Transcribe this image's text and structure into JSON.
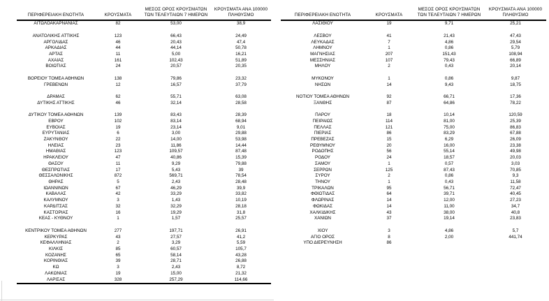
{
  "page": {
    "background": "#ffffff",
    "text_color": "#000000"
  },
  "table_headers": {
    "region": "ΠΕΡΙΦΕΡΕΙΑΚΗ ΕΝΟΤΗΤΑ",
    "cases": "ΚΡΟΥΣΜΑΤΑ",
    "avg7": "ΜΕΣΟΣ ΟΡΟΣ ΚΡΟΥΣΜΑΤΩΝ\nΤΩΝ ΤΕΛΕΥΤΑΙΩΝ 7 ΗΜΕΡΩΝ",
    "per100k": "ΚΡΟΥΣΜΑΤΑ ΑΝΑ 100000\nΠΛΗΘΥΣΜΟ"
  },
  "left_table": {
    "rows": [
      [
        "ΑΙΤΩΛΟΑΚΑΡΝΑΝΙΑΣ",
        "82",
        "53,00",
        "38,9"
      ],
      null,
      [
        "ΑΝΑΤΟΛΙΚΗΣ ΑΤΤΙΚΗΣ",
        "123",
        "66,43",
        "24,49"
      ],
      [
        "ΑΡΓΟΛΙΔΑΣ",
        "46",
        "20,43",
        "47,4"
      ],
      [
        "ΑΡΚΑΔΙΑΣ",
        "44",
        "44,14",
        "50,78"
      ],
      [
        "ΑΡΤΑΣ",
        "11",
        "5,00",
        "16,21"
      ],
      [
        "ΑΧΑΪΑΣ",
        "161",
        "102,43",
        "51,89"
      ],
      [
        "ΒΟΙΩΤΙΑΣ",
        "24",
        "20,57",
        "20,35"
      ],
      null,
      [
        "ΒΟΡΕΙΟΥ ΤΟΜΕΑ ΑΘΗΝΩΝ",
        "138",
        "79,86",
        "23,32"
      ],
      [
        "ΓΡΕΒΕΝΩΝ",
        "12",
        "16,57",
        "37,79"
      ],
      null,
      [
        "ΔΡΑΜΑΣ",
        "62",
        "55,71",
        "63,08"
      ],
      [
        "ΔΥΤΙΚΗΣ ΑΤΤΙΚΗΣ",
        "46",
        "32,14",
        "28,58"
      ],
      null,
      [
        "ΔΥΤΙΚΟΥ ΤΟΜΕΑ ΑΘΗΝΩΝ",
        "139",
        "83,43",
        "28,39"
      ],
      [
        "ΕΒΡΟΥ",
        "102",
        "83,14",
        "68,94"
      ],
      [
        "ΕΥΒΟΙΑΣ",
        "19",
        "23,14",
        "9,01"
      ],
      [
        "ΕΥΡΥΤΑΝΙΑΣ",
        "6",
        "3,00",
        "29,88"
      ],
      [
        "ΖΑΚΥΝΘΟΥ",
        "22",
        "14,00",
        "53,98"
      ],
      [
        "ΗΛΕΙΑΣ",
        "23",
        "11,86",
        "14,44"
      ],
      [
        "ΗΜΑΘΙΑΣ",
        "123",
        "109,57",
        "87,48"
      ],
      [
        "ΗΡΑΚΛΕΙΟΥ",
        "47",
        "40,86",
        "15,39"
      ],
      [
        "ΘΑΣΟΥ",
        "11",
        "9,29",
        "79,88"
      ],
      [
        "ΘΕΣΠΡΩΤΙΑΣ",
        "17",
        "5,43",
        "39"
      ],
      [
        "ΘΕΣΣΑΛΟΝΙΚΗΣ",
        "872",
        "569,71",
        "78,54"
      ],
      [
        "ΘΗΡΑΣ",
        "5",
        "2,43",
        "28,48"
      ],
      [
        "ΙΩΑΝΝΙΝΩΝ",
        "67",
        "46,29",
        "39,9"
      ],
      [
        "ΚΑΒΑΛΑΣ",
        "42",
        "33,29",
        "33,82"
      ],
      [
        "ΚΑΛΥΜΝΟΥ",
        "3",
        "1,43",
        "10,19"
      ],
      [
        "ΚΑΡΔΙΤΣΑΣ",
        "32",
        "32,29",
        "28,18"
      ],
      [
        "ΚΑΣΤΟΡΙΑΣ",
        "16",
        "19,29",
        "31,8"
      ],
      [
        "ΚΕΑΣ - ΚΥΘΝΟΥ",
        "1",
        "1,57",
        "25,57"
      ],
      null,
      [
        "ΚΕΝΤΡΙΚΟΥ ΤΟΜΕΑ ΑΘΗΝΩΝ",
        "277",
        "197,71",
        "26,91"
      ],
      [
        "ΚΕΡΚΥΡΑΣ",
        "43",
        "27,57",
        "41,2"
      ],
      [
        "ΚΕΦΑΛΛΗΝΙΑΣ",
        "2",
        "3,29",
        "5,59"
      ],
      [
        "ΚΙΛΚΙΣ",
        "85",
        "60,57",
        "105,7"
      ],
      [
        "ΚΟΖΑΝΗΣ",
        "65",
        "58,14",
        "43,28"
      ],
      [
        "ΚΟΡΙΝΘΙΑΣ",
        "39",
        "28,71",
        "26,88"
      ],
      [
        "ΚΩ",
        "3",
        "2,43",
        "8,72"
      ],
      [
        "ΛΑΚΩΝΙΑΣ",
        "19",
        "15,00",
        "21,32"
      ],
      [
        "ΛΑΡΙΣΑΣ",
        "328",
        "257,29",
        "114,66"
      ]
    ]
  },
  "right_table": {
    "rows": [
      [
        "ΛΑΣΙΘΙΟΥ",
        "19",
        "9,71",
        "25,21"
      ],
      null,
      [
        "ΛΕΣΒΟΥ",
        "41",
        "21,43",
        "47,43"
      ],
      [
        "ΛΕΥΚΑΔΑΣ",
        "7",
        "4,86",
        "29,54"
      ],
      [
        "ΛΗΜΝΟΥ",
        "1",
        "0,86",
        "5,79"
      ],
      [
        "ΜΑΓΝΗΣΙΑΣ",
        "207",
        "151,43",
        "108,94"
      ],
      [
        "ΜΕΣΣΗΝΙΑΣ",
        "107",
        "79,43",
        "66,89"
      ],
      [
        "ΜΗΛΟΥ",
        "2",
        "0,43",
        "20,14"
      ],
      null,
      [
        "ΜΥΚΟΝΟΥ",
        "1",
        "0,86",
        "9,87"
      ],
      [
        "ΝΗΣΩΝ",
        "14",
        "9,43",
        "18,75"
      ],
      null,
      [
        "ΝΟΤΙΟΥ ΤΟΜΕΑ ΑΘΗΝΩΝ",
        "92",
        "66,71",
        "17,36"
      ],
      [
        "ΞΑΝΘΗΣ",
        "87",
        "64,86",
        "78,22"
      ],
      null,
      [
        "ΠΑΡΟΥ",
        "18",
        "10,14",
        "120,59"
      ],
      [
        "ΠΕΙΡΑΙΩΣ",
        "114",
        "81,00",
        "25,39"
      ],
      [
        "ΠΕΛΛΑΣ",
        "121",
        "75,00",
        "86,83"
      ],
      [
        "ΠΙΕΡΙΑΣ",
        "86",
        "83,29",
        "67,88"
      ],
      [
        "ΠΡΕΒΕΖΑΣ",
        "15",
        "6,29",
        "26,09"
      ],
      [
        "ΡΕΘΥΜΝΟΥ",
        "20",
        "16,00",
        "23,38"
      ],
      [
        "ΡΟΔΟΠΗΣ",
        "56",
        "55,14",
        "49,98"
      ],
      [
        "ΡΟΔΟΥ",
        "24",
        "18,57",
        "20,03"
      ],
      [
        "ΣΑΜΟΥ",
        "1",
        "0,57",
        "3,03"
      ],
      [
        "ΣΕΡΡΩΝ",
        "125",
        "87,43",
        "70,85"
      ],
      [
        "ΣΥΡΟΥ",
        "2",
        "0,86",
        "9,3"
      ],
      [
        "ΤΗΝΟΥ",
        "1",
        "0,43",
        "11,58"
      ],
      [
        "ΤΡΙΚΑΛΩΝ",
        "95",
        "56,71",
        "72,47"
      ],
      [
        "ΦΘΙΩΤΙΔΑΣ",
        "64",
        "39,71",
        "40,45"
      ],
      [
        "ΦΛΩΡΙΝΑΣ",
        "14",
        "12,00",
        "27,23"
      ],
      [
        "ΦΩΚΙΔΑΣ",
        "14",
        "11,00",
        "34,7"
      ],
      [
        "ΧΑΛΚΙΔΙΚΗΣ",
        "43",
        "38,00",
        "40,8"
      ],
      [
        "ΧΑΝΙΩΝ",
        "37",
        "19,14",
        "23,83"
      ],
      null,
      [
        "ΧΙΟΥ",
        "3",
        "4,86",
        "5,7"
      ],
      [
        "ΑΓΙΟ ΟΡΟΣ",
        "8",
        "2,00",
        "441,74"
      ],
      [
        "ΥΠΟ ΔΙΕΡΕΥΝΗΣΗ",
        "86",
        "",
        ""
      ]
    ]
  }
}
